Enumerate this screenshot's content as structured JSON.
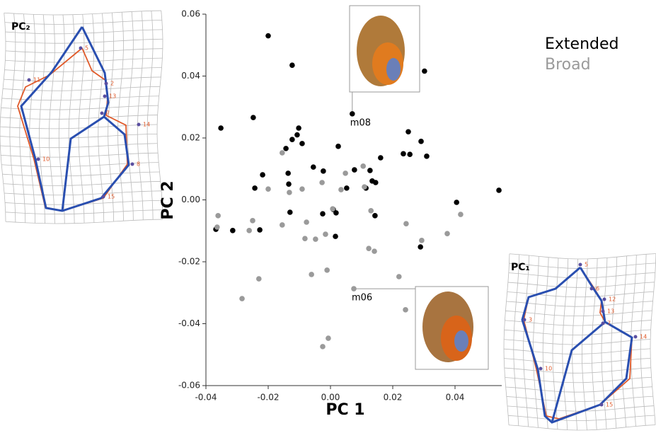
{
  "chart_data": {
    "type": "scatter",
    "x_label": "PC 1",
    "y_label": "PC 2",
    "xlim": [
      -0.04,
      0.055
    ],
    "ylim": [
      -0.06,
      0.06
    ],
    "xticks": [
      -0.04,
      -0.02,
      {
        "value": 0,
        "label": "0.00"
      },
      0.02,
      0.04
    ],
    "yticks": [
      -0.06,
      -0.04,
      -0.02,
      {
        "value": 0,
        "label": "0.00"
      },
      0.02,
      0.04,
      0.06
    ],
    "series": [
      {
        "name": "Extended",
        "color": "#000000",
        "x": [
          -0.02,
          -0.0123,
          0.0302,
          0.007,
          -0.0352,
          -0.0248,
          -0.0102,
          0.025,
          -0.0123,
          -0.0143,
          -0.0107,
          -0.0091,
          0.0025,
          0.0291,
          0.0234,
          0.0255,
          0.0161,
          0.0309,
          -0.0055,
          -0.0023,
          0.0077,
          0.0127,
          -0.0136,
          -0.0218,
          0.0134,
          0.0145,
          -0.0134,
          -0.0243,
          0.0052,
          0.0114,
          0.0541,
          0.0405,
          0.0009,
          -0.013,
          0.0018,
          -0.0025,
          0.0143,
          -0.0368,
          -0.0314,
          -0.0227,
          0.0016,
          0.0289
        ],
        "y": [
          0.053,
          0.0435,
          0.0416,
          0.0278,
          0.0232,
          0.0266,
          0.0232,
          0.022,
          0.0195,
          0.0166,
          0.021,
          0.0182,
          0.0173,
          0.0189,
          0.0149,
          0.0147,
          0.0136,
          0.0141,
          0.0106,
          0.0093,
          0.0097,
          0.0095,
          0.0086,
          0.0081,
          0.0061,
          0.0056,
          0.0051,
          0.0038,
          0.0038,
          0.0038,
          0.0031,
          -0.0008,
          -0.0031,
          -0.004,
          -0.0042,
          -0.0045,
          -0.0051,
          -0.0095,
          -0.0099,
          -0.0097,
          -0.0118,
          -0.0152
        ]
      },
      {
        "name": "Broad",
        "color": "#9a9a9a",
        "x": [
          -0.0155,
          0.0048,
          0.0105,
          -0.02,
          -0.0132,
          -0.0091,
          -0.0027,
          0.0109,
          0.0034,
          -0.0361,
          0.0007,
          0.013,
          0.0418,
          -0.0364,
          -0.025,
          -0.0261,
          -0.0155,
          -0.0077,
          -0.0082,
          -0.0048,
          -0.0016,
          0.0243,
          0.0375,
          0.0293,
          0.0123,
          0.0141,
          -0.0061,
          -0.0011,
          -0.023,
          0.022,
          0.0075,
          -0.0284,
          0.0241,
          -0.0007,
          -0.0025
        ],
        "y": [
          0.0152,
          0.0086,
          0.0109,
          0.0035,
          0.0024,
          0.0035,
          0.0056,
          0.0042,
          0.0033,
          -0.0051,
          -0.0029,
          -0.0035,
          -0.0047,
          -0.0088,
          -0.0067,
          -0.0099,
          -0.0081,
          -0.0072,
          -0.0125,
          -0.0127,
          -0.0111,
          -0.0077,
          -0.0109,
          -0.0131,
          -0.0157,
          -0.0166,
          -0.0241,
          -0.0227,
          -0.0255,
          -0.0248,
          -0.0287,
          -0.0319,
          -0.0355,
          -0.0447,
          -0.0474
        ]
      }
    ],
    "annotations": [
      {
        "text": "m08",
        "x": 0.007,
        "y": 0.0278
      },
      {
        "text": "m06",
        "x": 0.0075,
        "y": -0.0287
      }
    ],
    "insets": [
      {
        "label": "PC₂",
        "landmarks": [
          "5",
          "2",
          "13",
          "7",
          "14",
          "8",
          "15",
          "10",
          "11"
        ]
      },
      {
        "label": "PC₁",
        "landmarks": [
          "5",
          "6",
          "12",
          "13",
          "7",
          "14",
          "15",
          "10",
          "3"
        ]
      }
    ]
  }
}
